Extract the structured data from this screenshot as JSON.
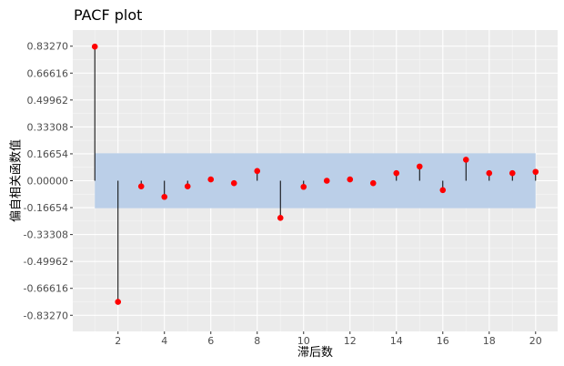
{
  "chart_data": {
    "type": "scatter",
    "title": "PACF plot",
    "xlabel": "滞后数",
    "ylabel": "偏自相关函数值",
    "x_ticks": [
      2,
      4,
      6,
      8,
      10,
      12,
      14,
      16,
      18,
      20
    ],
    "x_tick_labels": [
      "2",
      "4",
      "6",
      "8",
      "10",
      "12",
      "14",
      "16",
      "18",
      "20"
    ],
    "xlim": [
      0.05,
      20.95
    ],
    "y_ticks": [
      -0.8327,
      -0.66616,
      -0.49962,
      -0.33308,
      -0.16654,
      0.0,
      0.16654,
      0.33308,
      0.49962,
      0.66616,
      0.8327
    ],
    "y_tick_labels": [
      "-0.83270",
      "-0.66616",
      "-0.49962",
      "-0.33308",
      "-0.16654",
      "0.00000",
      "0.16654",
      "0.33308",
      "0.49962",
      "0.66616",
      "0.83270"
    ],
    "ylim": [
      -0.8327,
      0.8327
    ],
    "confidence_band": [
      -0.17,
      0.17
    ],
    "confidence_color": "#BBCFE8",
    "point_color": "#FF0000",
    "x": [
      1,
      2,
      3,
      4,
      5,
      6,
      7,
      8,
      9,
      10,
      11,
      12,
      13,
      14,
      15,
      16,
      17,
      18,
      19,
      20
    ],
    "values": [
      0.83,
      -0.75,
      -0.035,
      -0.1,
      -0.035,
      0.008,
      -0.015,
      0.06,
      -0.23,
      -0.038,
      0.0,
      0.008,
      -0.015,
      0.047,
      0.088,
      -0.058,
      0.13,
      0.047,
      0.047,
      0.055
    ],
    "grid": true
  }
}
